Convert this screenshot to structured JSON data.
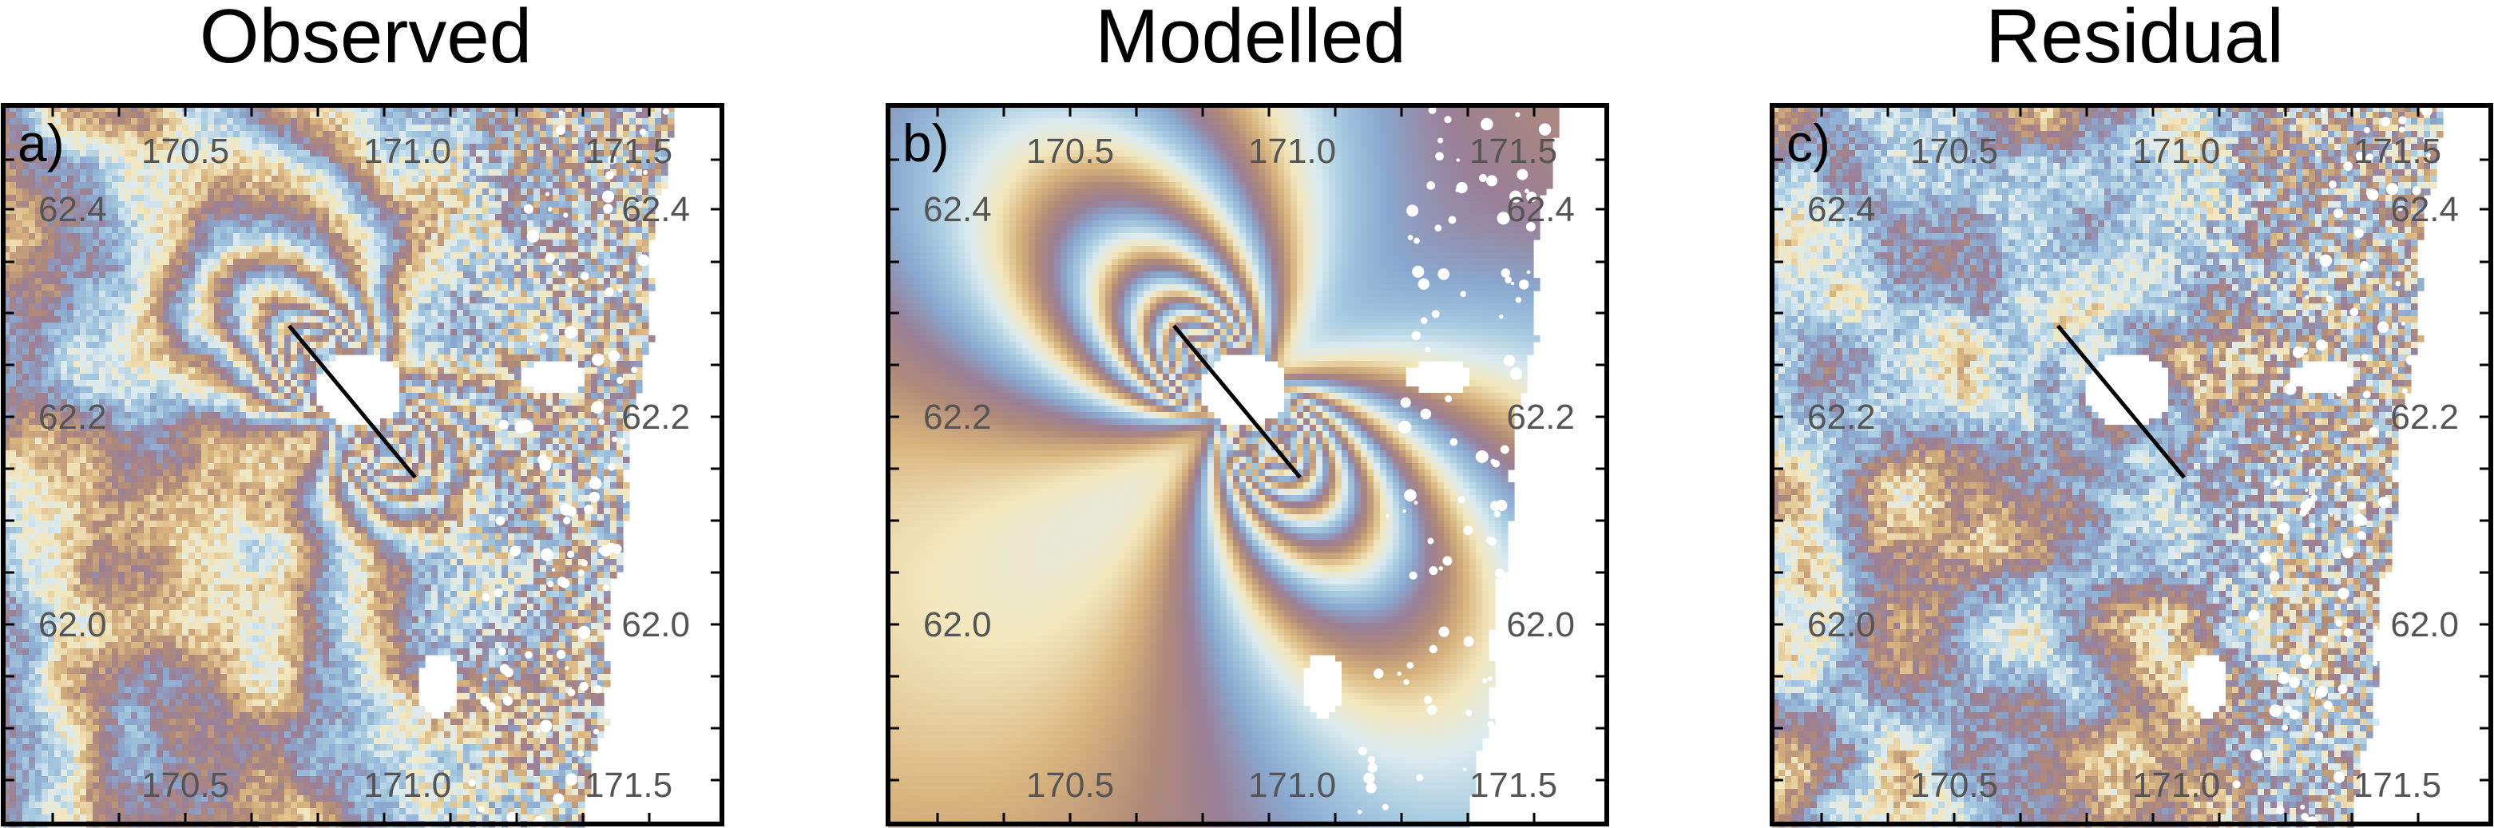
{
  "figure": {
    "panels": [
      {
        "title": "Observed",
        "letter": "a)",
        "kind": "observed",
        "lon_labels_top": [
          "170.5",
          "171.0",
          "171.5"
        ],
        "lon_labels_bottom": [
          "170.5",
          "171.0",
          "171.5"
        ],
        "lat_labels_left": [
          "62.4",
          "62.2",
          "62.0"
        ],
        "lat_labels_right": [
          "62.4",
          "62.2",
          "62.0"
        ]
      },
      {
        "title": "Modelled",
        "letter": "b)",
        "kind": "modelled",
        "lon_labels_top": [
          "170.5",
          "171.0",
          "171.5"
        ],
        "lon_labels_bottom": [
          "170.5",
          "171.0",
          "171.5"
        ],
        "lat_labels_left": [
          "62.4",
          "62.2",
          "62.0"
        ],
        "lat_labels_right": [
          "62.4",
          "62.2",
          "62.0"
        ]
      },
      {
        "title": "Residual",
        "letter": "c)",
        "kind": "residual",
        "lon_labels_top": [
          "170.5",
          "171.0",
          "171.5"
        ],
        "lon_labels_bottom": [
          "170.5",
          "171.0",
          "171.5"
        ],
        "lat_labels_left": [
          "62.4",
          "62.2",
          "62.0"
        ],
        "lat_labels_right": [
          "62.4",
          "62.2",
          "62.0"
        ]
      }
    ],
    "colors": {
      "frame": "#000000",
      "fault_trace": "#000000",
      "tick_label": "#555555",
      "phase_cycle": [
        "#8aa8cf",
        "#a6cae0",
        "#dcebf0",
        "#f3e7bd",
        "#d8b47e",
        "#b08a78",
        "#9a7f97",
        "#8aa8cf"
      ]
    }
  }
}
